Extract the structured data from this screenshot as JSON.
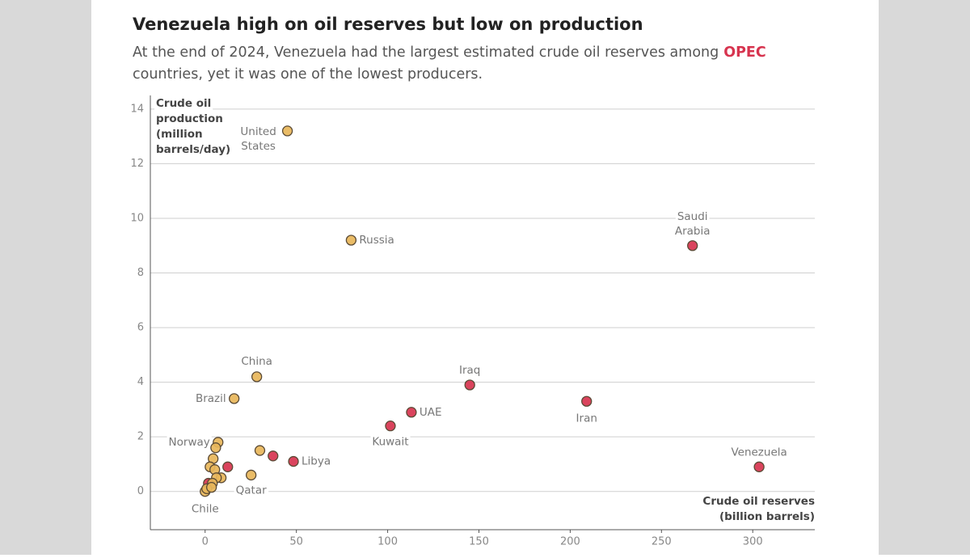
{
  "chart_data": {
    "type": "scatter",
    "title": "Venezuela high on oil reserves but low on production",
    "subtitle": [
      "At the end of 2024, Venezuela had the largest estimated crude oil reserves among",
      "OPEC",
      "countries, yet it was one of the lowest producers."
    ],
    "ylabel": [
      "Crude oil",
      "production",
      "(million",
      "barrels/day)"
    ],
    "xlabel": [
      "Crude oil reserves",
      "(billion barrels)"
    ],
    "xlim": [
      -30,
      334
    ],
    "ylim": [
      -1.4,
      14.5
    ],
    "xticks": [
      0,
      50,
      100,
      150,
      200,
      250,
      300
    ],
    "yticks": [
      0,
      2,
      4,
      6,
      8,
      10,
      12,
      14
    ],
    "grid": true,
    "series": [
      {
        "color": "#d7344f",
        "x": [
          267,
          145,
          209,
          113,
          101.5,
          303.5,
          48.4,
          37.2,
          12.4,
          1.8
        ],
        "values": [
          9.0,
          3.9,
          3.3,
          2.9,
          2.4,
          0.9,
          1.1,
          1.3,
          0.9,
          0.3
        ],
        "labels": [
          [
            "Saudi",
            "Arabia"
          ],
          [
            "Iraq"
          ],
          [
            "Iran"
          ],
          [
            "UAE"
          ],
          [
            "Kuwait"
          ],
          [
            "Venezuela"
          ],
          [
            "Libya"
          ],
          null,
          null,
          null
        ]
      },
      {
        "color": "#e8b65a",
        "x": [
          45.1,
          80,
          28.3,
          15.9,
          7.1,
          25.2,
          0,
          30,
          4.4,
          5.8,
          2.7,
          5.3,
          8.8,
          6.2,
          4,
          0.9,
          3.5
        ],
        "values": [
          13.2,
          9.2,
          4.2,
          3.4,
          1.8,
          0.6,
          0,
          1.5,
          1.2,
          1.6,
          0.9,
          0.8,
          0.5,
          0.5,
          0.3,
          0.1,
          0.15
        ],
        "labels": [
          [
            "United",
            "States"
          ],
          [
            "Russia"
          ],
          [
            "China"
          ],
          [
            "Brazil"
          ],
          [
            "Norway"
          ],
          [
            "Qatar"
          ],
          [
            "Chile"
          ],
          null,
          null,
          null,
          null,
          null,
          null,
          null,
          null,
          null,
          null
        ]
      }
    ]
  }
}
